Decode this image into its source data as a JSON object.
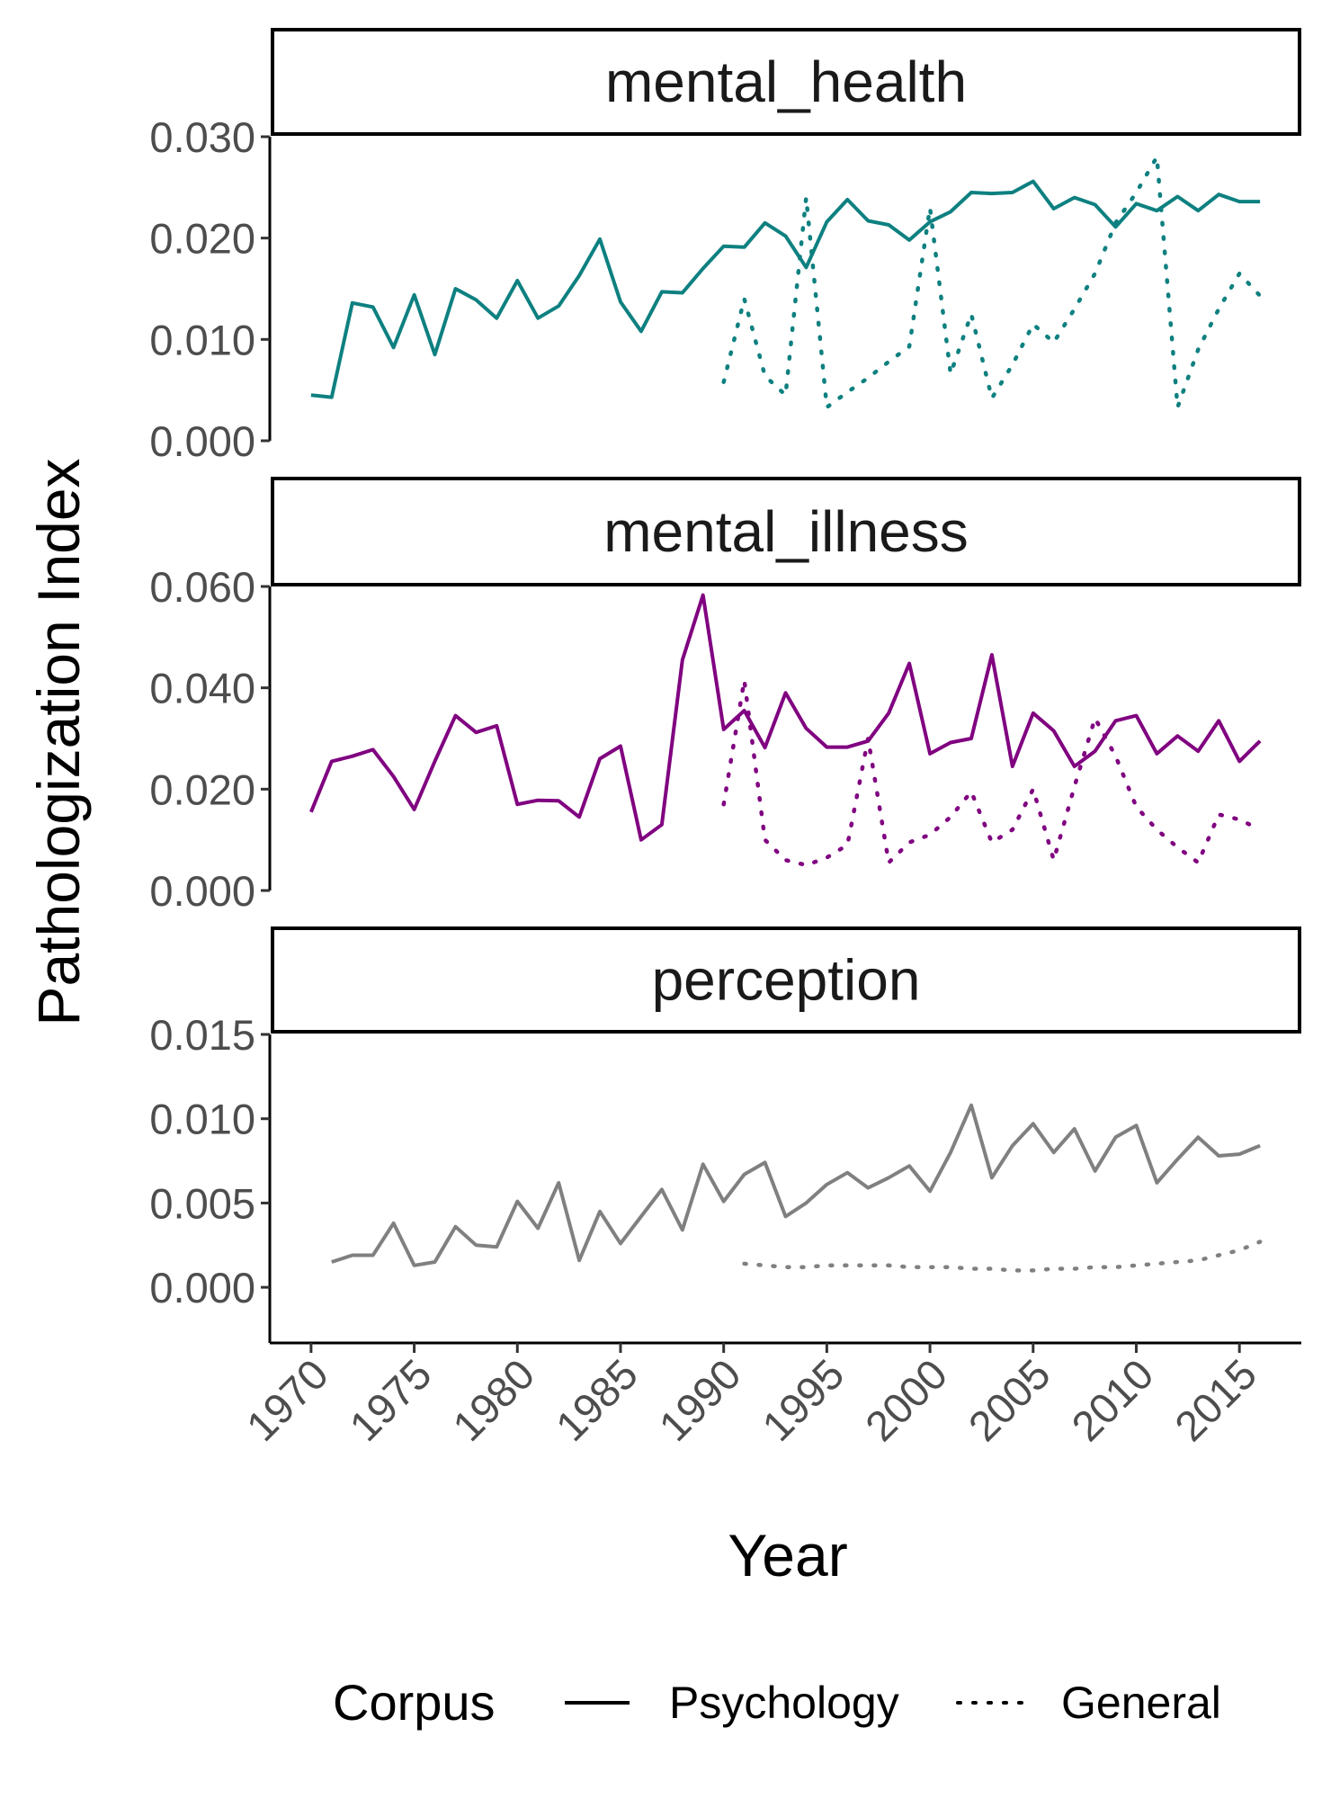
{
  "chart_data": {
    "type": "line",
    "xlabel": "Year",
    "ylabel": "Pathologization Index",
    "x_ticks": [
      "1970",
      "1975",
      "1980",
      "1985",
      "1990",
      "1995",
      "2000",
      "2005",
      "2010",
      "2015"
    ],
    "xlim": [
      1968,
      2018
    ],
    "legend": {
      "title": "Corpus",
      "position": "bottom",
      "entries": [
        {
          "label": "Psychology",
          "linetype": "solid"
        },
        {
          "label": "General",
          "linetype": "dotted"
        }
      ]
    },
    "panels": [
      {
        "strip": "mental_health",
        "color": "#0e8080",
        "ylim": [
          0.0,
          0.03
        ],
        "y_ticks": [
          "0.000",
          "0.010",
          "0.020",
          "0.030"
        ],
        "y_tick_values": [
          0.0,
          0.01,
          0.02,
          0.03
        ],
        "series": [
          {
            "name": "Psychology",
            "x": [
              1970,
              1971,
              1972,
              1973,
              1974,
              1975,
              1976,
              1977,
              1978,
              1979,
              1980,
              1981,
              1982,
              1983,
              1984,
              1985,
              1986,
              1987,
              1988,
              1989,
              1990,
              1991,
              1992,
              1993,
              1994,
              1995,
              1996,
              1997,
              1998,
              1999,
              2000,
              2001,
              2002,
              2003,
              2004,
              2005,
              2006,
              2007,
              2008,
              2009,
              2010,
              2011,
              2012,
              2013,
              2014,
              2015,
              2016
            ],
            "y": [
              0.0045,
              0.0043,
              0.0136,
              0.0132,
              0.0092,
              0.0144,
              0.0085,
              0.015,
              0.0139,
              0.0121,
              0.0158,
              0.0121,
              0.0133,
              0.0163,
              0.0199,
              0.0137,
              0.0108,
              0.0147,
              0.0146,
              0.017,
              0.0192,
              0.0191,
              0.0215,
              0.0202,
              0.0171,
              0.0216,
              0.0238,
              0.0217,
              0.0213,
              0.0198,
              0.0216,
              0.0226,
              0.0245,
              0.0244,
              0.0245,
              0.0256,
              0.0229,
              0.024,
              0.0233,
              0.0211,
              0.0234,
              0.0227,
              0.0241,
              0.0227,
              0.0243,
              0.0236,
              0.0236
            ]
          },
          {
            "name": "General",
            "x": [
              1990,
              1991,
              1992,
              1993,
              1994,
              1995,
              1996,
              1997,
              1998,
              1999,
              2000,
              2001,
              2002,
              2003,
              2004,
              2005,
              2006,
              2007,
              2008,
              2009,
              2010,
              2011,
              2012,
              2013,
              2014,
              2015,
              2016
            ],
            "y": [
              0.0058,
              0.014,
              0.0064,
              0.0045,
              0.024,
              0.0033,
              0.0048,
              0.0062,
              0.0078,
              0.0093,
              0.023,
              0.0066,
              0.0125,
              0.0042,
              0.0075,
              0.0115,
              0.0097,
              0.013,
              0.0165,
              0.0215,
              0.0245,
              0.028,
              0.0033,
              0.009,
              0.013,
              0.0165,
              0.0143
            ]
          }
        ]
      },
      {
        "strip": "mental_illness",
        "color": "#800080",
        "ylim": [
          0.0,
          0.06
        ],
        "y_ticks": [
          "0.000",
          "0.020",
          "0.040",
          "0.060"
        ],
        "y_tick_values": [
          0.0,
          0.02,
          0.04,
          0.06
        ],
        "series": [
          {
            "name": "Psychology",
            "x": [
              1970,
              1971,
              1972,
              1973,
              1974,
              1975,
              1976,
              1977,
              1978,
              1979,
              1980,
              1981,
              1982,
              1983,
              1984,
              1985,
              1986,
              1987,
              1988,
              1989,
              1990,
              1991,
              1992,
              1993,
              1994,
              1995,
              1996,
              1997,
              1998,
              1999,
              2000,
              2001,
              2002,
              2003,
              2004,
              2005,
              2006,
              2007,
              2008,
              2009,
              2010,
              2011,
              2012,
              2013,
              2014,
              2015,
              2016
            ],
            "y": [
              0.0155,
              0.0255,
              0.0265,
              0.0278,
              0.0225,
              0.016,
              0.0255,
              0.0345,
              0.0312,
              0.0325,
              0.017,
              0.0178,
              0.0177,
              0.0145,
              0.026,
              0.0285,
              0.01,
              0.013,
              0.0455,
              0.0583,
              0.0318,
              0.0355,
              0.0282,
              0.039,
              0.032,
              0.0283,
              0.0283,
              0.0295,
              0.035,
              0.0448,
              0.027,
              0.0292,
              0.03,
              0.0465,
              0.0245,
              0.035,
              0.0315,
              0.0245,
              0.0275,
              0.0335,
              0.0345,
              0.027,
              0.0305,
              0.0275,
              0.0335,
              0.0255,
              0.0295
            ]
          },
          {
            "name": "General",
            "x": [
              1990,
              1991,
              1992,
              1993,
              1994,
              1995,
              1996,
              1997,
              1998,
              1999,
              2000,
              2001,
              2002,
              2003,
              2004,
              2005,
              2006,
              2007,
              2008,
              2009,
              2010,
              2011,
              2012,
              2013,
              2014,
              2015,
              2016
            ],
            "y": [
              0.017,
              0.0415,
              0.01,
              0.006,
              0.005,
              0.0065,
              0.009,
              0.03,
              0.0055,
              0.0095,
              0.011,
              0.0145,
              0.0195,
              0.0095,
              0.012,
              0.02,
              0.006,
              0.0205,
              0.034,
              0.0265,
              0.0165,
              0.012,
              0.0085,
              0.0055,
              0.015,
              0.014,
              0.012
            ]
          }
        ]
      },
      {
        "strip": "perception",
        "color": "#808080",
        "ylim": [
          -0.0033,
          0.015
        ],
        "y_ticks": [
          "0.000",
          "0.005",
          "0.010",
          "0.015"
        ],
        "y_tick_values": [
          0.0,
          0.005,
          0.01,
          0.015
        ],
        "series": [
          {
            "name": "Psychology",
            "x": [
              1971,
              1972,
              1973,
              1974,
              1975,
              1976,
              1977,
              1978,
              1979,
              1980,
              1981,
              1982,
              1983,
              1984,
              1985,
              1986,
              1987,
              1988,
              1989,
              1990,
              1991,
              1992,
              1993,
              1994,
              1995,
              1996,
              1997,
              1998,
              1999,
              2000,
              2001,
              2002,
              2003,
              2004,
              2005,
              2006,
              2007,
              2008,
              2009,
              2010,
              2011,
              2012,
              2013,
              2014,
              2015,
              2016
            ],
            "y": [
              0.0015,
              0.0019,
              0.0019,
              0.0038,
              0.0013,
              0.0015,
              0.0036,
              0.0025,
              0.0024,
              0.0051,
              0.0035,
              0.0062,
              0.0016,
              0.0045,
              0.0026,
              0.0042,
              0.0058,
              0.0034,
              0.0073,
              0.0051,
              0.0067,
              0.0074,
              0.0042,
              0.005,
              0.0061,
              0.0068,
              0.0059,
              0.0065,
              0.0072,
              0.0057,
              0.008,
              0.0108,
              0.0065,
              0.0084,
              0.0097,
              0.008,
              0.0094,
              0.0069,
              0.0089,
              0.0096,
              0.0062,
              0.0076,
              0.0089,
              0.0078,
              0.0079,
              0.0084
            ]
          },
          {
            "name": "General",
            "x": [
              1991,
              1992,
              1993,
              1994,
              1995,
              1996,
              1997,
              1998,
              1999,
              2000,
              2001,
              2002,
              2003,
              2004,
              2005,
              2006,
              2007,
              2008,
              2009,
              2010,
              2011,
              2012,
              2013,
              2014,
              2015,
              2016
            ],
            "y": [
              0.0014,
              0.0013,
              0.0012,
              0.0012,
              0.0013,
              0.0013,
              0.0013,
              0.0013,
              0.0012,
              0.0012,
              0.0012,
              0.0011,
              0.0011,
              0.001,
              0.001,
              0.0011,
              0.0011,
              0.0012,
              0.0012,
              0.0013,
              0.0014,
              0.0015,
              0.0016,
              0.0019,
              0.0022,
              0.0027
            ]
          }
        ]
      }
    ]
  }
}
